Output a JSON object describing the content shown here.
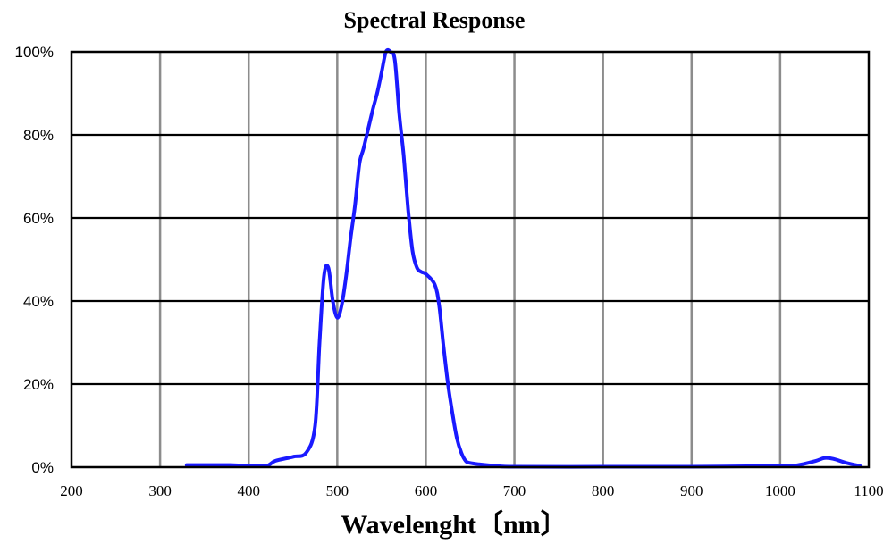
{
  "chart_data": {
    "type": "line",
    "title": "Spectral Response",
    "xlabel": "Wavelenght〔nm〕",
    "ylabel": "",
    "xlim": [
      200,
      1100
    ],
    "ylim": [
      0,
      100
    ],
    "x_ticks": [
      200,
      300,
      400,
      500,
      600,
      700,
      800,
      900,
      1000,
      1100
    ],
    "x_tick_labels": [
      "200",
      "300",
      "400",
      "500",
      "600",
      "700",
      "800",
      "900",
      "1000",
      "1100"
    ],
    "y_ticks": [
      0,
      20,
      40,
      60,
      80,
      100
    ],
    "y_tick_labels": [
      "0%",
      "20%",
      "40%",
      "60%",
      "80%",
      "100%"
    ],
    "grid": true,
    "legend": "none",
    "colors": {
      "line": "#1a1aff",
      "grid_vertical": "#8c8c8c",
      "grid_horizontal": "#000000",
      "frame": "#000000"
    },
    "series": [
      {
        "x": [
          330,
          350,
          380,
          400,
          420,
          430,
          450,
          465,
          475,
          480,
          485,
          490,
          495,
          500,
          505,
          510,
          515,
          520,
          525,
          530,
          540,
          545,
          550,
          555,
          560,
          565,
          570,
          575,
          580,
          585,
          590,
          595,
          600,
          610,
          615,
          620,
          625,
          630,
          635,
          640,
          645,
          650,
          660,
          680,
          700,
          800,
          900,
          1000,
          1020,
          1040,
          1050,
          1060,
          1075,
          1090
        ],
        "y": [
          0.5,
          0.5,
          0.5,
          0.3,
          0.3,
          1.5,
          2.5,
          3.5,
          10,
          30,
          46,
          48,
          40,
          36,
          39,
          46,
          55,
          63,
          73,
          77,
          86,
          90,
          95,
          100,
          100,
          98,
          85,
          75,
          62,
          52,
          48,
          47,
          46.5,
          44,
          39,
          29,
          20,
          13,
          7,
          3.5,
          1.5,
          1.0,
          0.7,
          0.3,
          0.1,
          0.1,
          0.1,
          0.3,
          0.5,
          1.5,
          2.2,
          2.0,
          1.0,
          0.3
        ]
      }
    ]
  }
}
